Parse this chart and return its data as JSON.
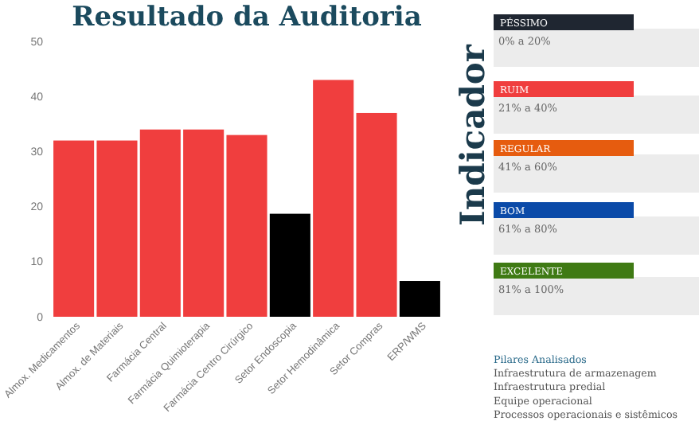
{
  "chart_data": [
    {
      "type": "bar",
      "title": "Resultado da Auditoria",
      "categories": [
        "Almox. Medicamentos",
        "Almox. de Materiais",
        "Farmácia Central",
        "Farmácia Quimioterapia",
        "Farmácia Centro Cirúrgico",
        "Setor Endoscopia",
        "Setor Hemodinâmica",
        "Setor Compras",
        "ERP/WMS"
      ],
      "values": [
        32,
        32,
        34,
        34,
        33,
        18.7,
        43,
        37,
        6.5
      ],
      "colors": [
        "#f03e3e",
        "#f03e3e",
        "#f03e3e",
        "#f03e3e",
        "#f03e3e",
        "#000000",
        "#f03e3e",
        "#f03e3e",
        "#000000"
      ],
      "ylim": [
        0,
        50
      ],
      "yticks": [
        0,
        10,
        20,
        30,
        40,
        50
      ],
      "grid": false
    },
    {
      "type": "other",
      "title": "Indicador",
      "categories": [
        "PÉSSIMO",
        "RUIM",
        "REGULAR",
        "BOM",
        "EXCELENTE"
      ],
      "colors": [
        "#1f2631",
        "#f03e3e",
        "#e65c0f",
        "#0a4aa8",
        "#3f7a14"
      ],
      "value_labels": [
        "0% a 20%",
        "21% a 40%",
        "41% a 60%",
        "61% a 80%",
        "81% a 100%"
      ],
      "annotations": [
        "Pilares Analisados",
        "Infraestrutura de armazenagem",
        "Infraestrutura predial",
        "Equipe operacional",
        "Processos operacionais e sistêmicos"
      ]
    }
  ]
}
